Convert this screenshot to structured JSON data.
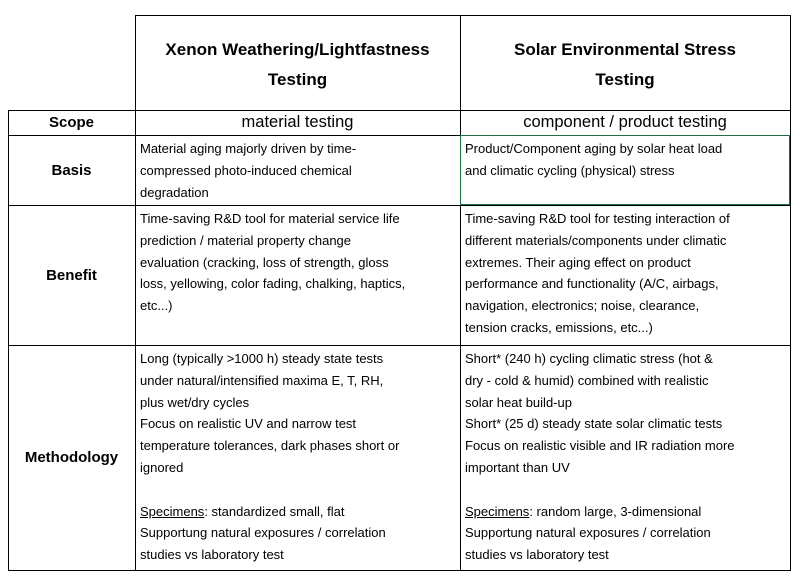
{
  "table": {
    "header": [
      [
        "Xenon Weathering/Lightfastness",
        "Testing"
      ],
      [
        "Solar Environmental Stress",
        "Testing"
      ]
    ],
    "rows": [
      {
        "label": "Scope",
        "cells": [
          {
            "lines": [
              "material testing"
            ]
          },
          {
            "lines": [
              "component / product testing"
            ]
          }
        ]
      },
      {
        "label": "Basis",
        "cells": [
          {
            "lines": [
              "Material aging majorly driven by time-",
              "compressed photo-induced chemical",
              "degradation"
            ]
          },
          {
            "lines": [
              "Product/Component aging by solar heat load",
              "and climatic cycling (physical) stress"
            ]
          }
        ]
      },
      {
        "label": "Benefit",
        "cells": [
          {
            "lines": [
              "Time-saving R&D tool for material service life",
              "prediction / material property change",
              "evaluation (cracking, loss of strength, gloss",
              "loss,  yellowing, color fading, chalking, haptics,",
              "etc...)"
            ]
          },
          {
            "lines": [
              "Time-saving R&D tool for testing interaction of",
              "different materials/components under climatic",
              "extremes. Their aging effect on product",
              "performance and functionality (A/C, airbags,",
              "navigation, electronics; noise, clearance,",
              "tension cracks, emissions, etc...)"
            ]
          }
        ]
      },
      {
        "label": "Methodology",
        "cells": [
          {
            "lines": [
              "Long (typically >1000 h) steady state tests",
              "under natural/intensified maxima E, T, RH,",
              "plus wet/dry cycles",
              "Focus on realistic UV and narrow test",
              "temperature tolerances, dark phases short or",
              "ignored"
            ],
            "specimens": {
              "label": "Specimens",
              "text": ": standardized small, flat"
            },
            "more": [
              "Supportung natural exposures / correlation",
              "studies vs laboratory test"
            ]
          },
          {
            "lines": [
              "Short* (240 h) cycling climatic stress (hot &",
              "dry - cold & humid) combined with realistic",
              "solar heat build-up",
              "Short* (25 d) steady state solar climatic tests",
              "Focus on realistic visible and IR radiation more",
              "important than UV"
            ],
            "specimens": {
              "label": "Specimens",
              "text": ": random large, 3-dimensional"
            },
            "more": [
              "Supportung natural exposures / correlation",
              "studies vs laboratory test"
            ]
          }
        ]
      }
    ]
  }
}
